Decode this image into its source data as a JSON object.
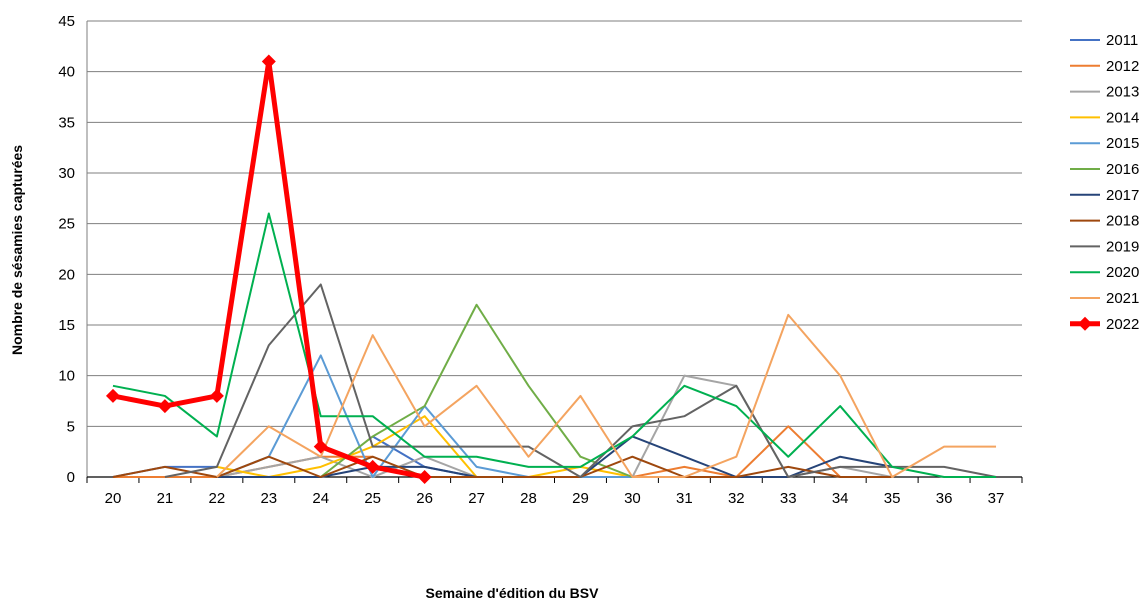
{
  "chart_data": {
    "type": "line",
    "title": "",
    "xlabel": "Semaine d'édition du BSV",
    "ylabel": "Nombre de sésamies capturées",
    "ylim": [
      0,
      45
    ],
    "yticks": [
      0,
      5,
      10,
      15,
      20,
      25,
      30,
      35,
      40,
      45
    ],
    "categories": [
      "20",
      "21",
      "22",
      "23",
      "24",
      "25",
      "26",
      "27",
      "28",
      "29",
      "30",
      "31",
      "32",
      "33",
      "34",
      "35",
      "36",
      "37"
    ],
    "grid": "horizontal",
    "legend_position": "right",
    "series": [
      {
        "name": "2011",
        "color": "#4472C4",
        "values": [
          0,
          1,
          1,
          null,
          null,
          4,
          1,
          0,
          null,
          null,
          0,
          null,
          null,
          null,
          null,
          1,
          null,
          null
        ]
      },
      {
        "name": "2012",
        "color": "#ED7D31",
        "values": [
          0,
          0,
          0,
          1,
          2,
          2,
          null,
          null,
          null,
          null,
          0,
          1,
          0,
          5,
          0,
          0,
          null,
          null
        ]
      },
      {
        "name": "2013",
        "color": "#A5A5A5",
        "values": [
          null,
          null,
          0,
          1,
          2,
          0,
          2,
          0,
          null,
          null,
          0,
          10,
          9,
          0,
          1,
          0,
          null,
          null
        ]
      },
      {
        "name": "2014",
        "color": "#FFC000",
        "values": [
          null,
          null,
          1,
          0,
          1,
          3,
          6,
          0,
          0,
          1,
          0,
          null,
          null,
          null,
          null,
          null,
          null,
          null
        ]
      },
      {
        "name": "2015",
        "color": "#5B9BD5",
        "values": [
          null,
          null,
          0,
          2,
          12,
          0,
          7,
          1,
          0,
          0,
          0,
          null,
          null,
          null,
          null,
          null,
          null,
          null
        ]
      },
      {
        "name": "2016",
        "color": "#70AD47",
        "values": [
          null,
          null,
          0,
          0,
          0,
          4,
          7,
          17,
          9,
          2,
          0,
          null,
          null,
          null,
          null,
          null,
          null,
          null
        ]
      },
      {
        "name": "2017",
        "color": "#264478",
        "values": [
          null,
          null,
          0,
          0,
          0,
          1,
          1,
          0,
          0,
          0,
          4,
          2,
          0,
          0,
          2,
          1,
          null,
          null
        ]
      },
      {
        "name": "2018",
        "color": "#9E480E",
        "values": [
          0,
          1,
          0,
          2,
          0,
          2,
          0,
          0,
          0,
          0,
          2,
          0,
          0,
          1,
          0,
          0,
          null,
          null
        ]
      },
      {
        "name": "2019",
        "color": "#636363",
        "values": [
          null,
          0,
          1,
          13,
          19,
          3,
          3,
          3,
          3,
          0,
          5,
          6,
          9,
          0,
          1,
          1,
          1,
          0
        ]
      },
      {
        "name": "2020",
        "color": "#00B050",
        "values": [
          9,
          8,
          4,
          26,
          6,
          6,
          2,
          2,
          1,
          1,
          4,
          9,
          7,
          2,
          7,
          1,
          0,
          0
        ]
      },
      {
        "name": "2021",
        "color": "#F4A460",
        "values": [
          null,
          null,
          0,
          5,
          2,
          14,
          5,
          9,
          2,
          8,
          0,
          0,
          2,
          16,
          10,
          0,
          3,
          3
        ]
      },
      {
        "name": "2022",
        "color": "#FF0000",
        "values": [
          8,
          7,
          8,
          41,
          3,
          1,
          0,
          null,
          null,
          null,
          null,
          null,
          null,
          null,
          null,
          null,
          null,
          null
        ]
      }
    ]
  }
}
